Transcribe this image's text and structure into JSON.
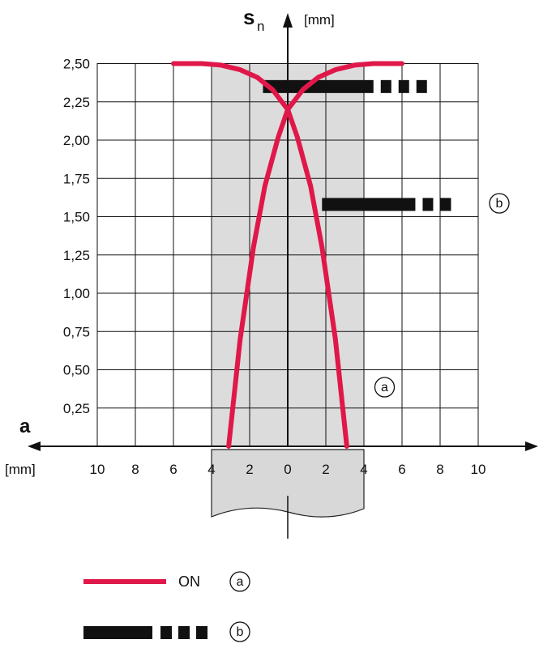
{
  "chart_data": {
    "type": "line",
    "y_axis": {
      "symbol": "s",
      "subscript": "n",
      "unit": "[mm]",
      "ylim": [
        0,
        2.5
      ],
      "ticks": [
        "0,25",
        "0,50",
        "0,75",
        "1,00",
        "1,25",
        "1,50",
        "1,75",
        "2,00",
        "2,25",
        "2,50"
      ]
    },
    "x_axis": {
      "symbol": "a",
      "unit": "[mm]",
      "xlim": [
        -10,
        10
      ],
      "ticks": [
        "10",
        "8",
        "6",
        "4",
        "2",
        "0",
        "2",
        "4",
        "6",
        "8",
        "10"
      ]
    },
    "grid": true,
    "series": [
      {
        "name": "ON",
        "marker": "a",
        "color": "#e0184a",
        "x": [
          -3.1,
          -2.5,
          -1.8,
          -1.2,
          -0.5,
          0.0,
          0.8,
          1.6,
          2.5,
          3.5,
          4.5,
          5.5,
          6.0
        ],
        "y": [
          0.0,
          0.7,
          1.3,
          1.7,
          2.02,
          2.2,
          2.33,
          2.41,
          2.46,
          2.49,
          2.5,
          2.5,
          2.5
        ]
      },
      {
        "name": "ON",
        "marker": "a",
        "color": "#e0184a",
        "x": [
          3.1,
          2.5,
          1.8,
          1.2,
          0.5,
          0.0,
          -0.8,
          -1.6,
          -2.5,
          -3.5,
          -4.5,
          -5.5,
          -6.0
        ],
        "y": [
          0.0,
          0.7,
          1.3,
          1.7,
          2.02,
          2.2,
          2.33,
          2.41,
          2.46,
          2.49,
          2.5,
          2.5,
          2.5
        ]
      }
    ],
    "bars": [
      {
        "marker": "b",
        "y": 2.35,
        "x_start": -1.3,
        "x_solid_end": 4.5,
        "x_end": 7.5
      },
      {
        "marker": "b",
        "y": 1.58,
        "x_start": 1.8,
        "x_solid_end": 6.7,
        "x_end": 9.2
      }
    ],
    "shaded_band_x": [
      -4,
      4
    ],
    "annotations": [
      {
        "text": "a",
        "x": 5.0,
        "y": 0.38
      },
      {
        "text": "b",
        "x": 11.0,
        "y": 1.6
      }
    ],
    "legend": [
      {
        "marker": "a",
        "label": "ON",
        "style": "red-line"
      },
      {
        "marker": "b",
        "label": "",
        "style": "black-dashed"
      }
    ]
  }
}
